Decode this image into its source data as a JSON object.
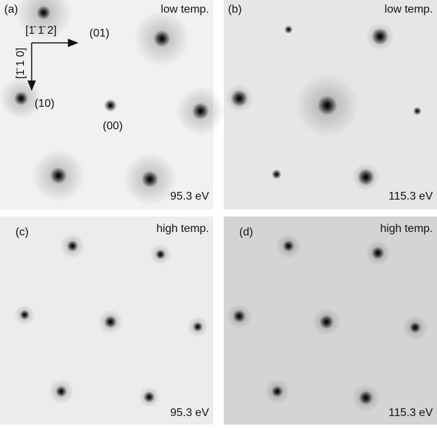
{
  "panels": [
    {
      "label": "(a)",
      "condition": "low temp.",
      "energy": "95.3 eV"
    },
    {
      "label": "(b)",
      "condition": "low temp.",
      "energy": "115.3 eV"
    },
    {
      "label": "(c)",
      "condition": "high temp.",
      "energy": "95.3 eV"
    },
    {
      "label": "(d)",
      "condition": "high temp.",
      "energy": "115.3 eV"
    }
  ],
  "annotations": {
    "spot_01": "(01)",
    "spot_10": "(10)",
    "spot_00": "(00)",
    "axis_horizontal": "[1̄ 1̄ 2]",
    "axis_vertical": "[1̄ 1 0]"
  }
}
